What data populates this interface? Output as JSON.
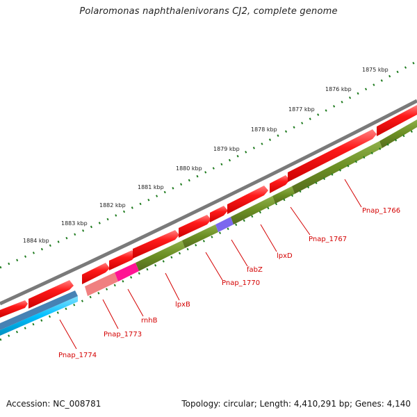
{
  "title": "Polaromonas naphthalenivorans CJ2, complete genome",
  "footer": {
    "accession": "Accession: NC_008781",
    "summary": "Topology: circular; Length: 4,410,291 bp; Genes: 4,140"
  },
  "ruler": {
    "ticks": [
      "1875 kbp",
      "1876 kbp",
      "1877 kbp",
      "1878 kbp",
      "1879 kbp",
      "1880 kbp",
      "1881 kbp",
      "1882 kbp",
      "1883 kbp",
      "1884 kbp"
    ]
  },
  "gene_labels": [
    "Pnap_1766",
    "Pnap_1767",
    "lpxD",
    "fabZ",
    "Pnap_1770",
    "lpxB",
    "rnhB",
    "Pnap_1773",
    "Pnap_1774"
  ],
  "colors": {
    "backbone": "#808080",
    "forward_cds": "#ff0000",
    "reverse_cds": "#ff0000",
    "gene_track_reverse": "#6b8e23",
    "gene_track_forward": "#00bfff",
    "label": "#d40000",
    "ruler": "#1e7b1e",
    "fabZ_highlight": "#7b68ee",
    "rnhB_highlight": "#ff1493",
    "Pnap_1773_highlight": "#f08080",
    "Pnap_1774_highlight": "#4682b4"
  }
}
